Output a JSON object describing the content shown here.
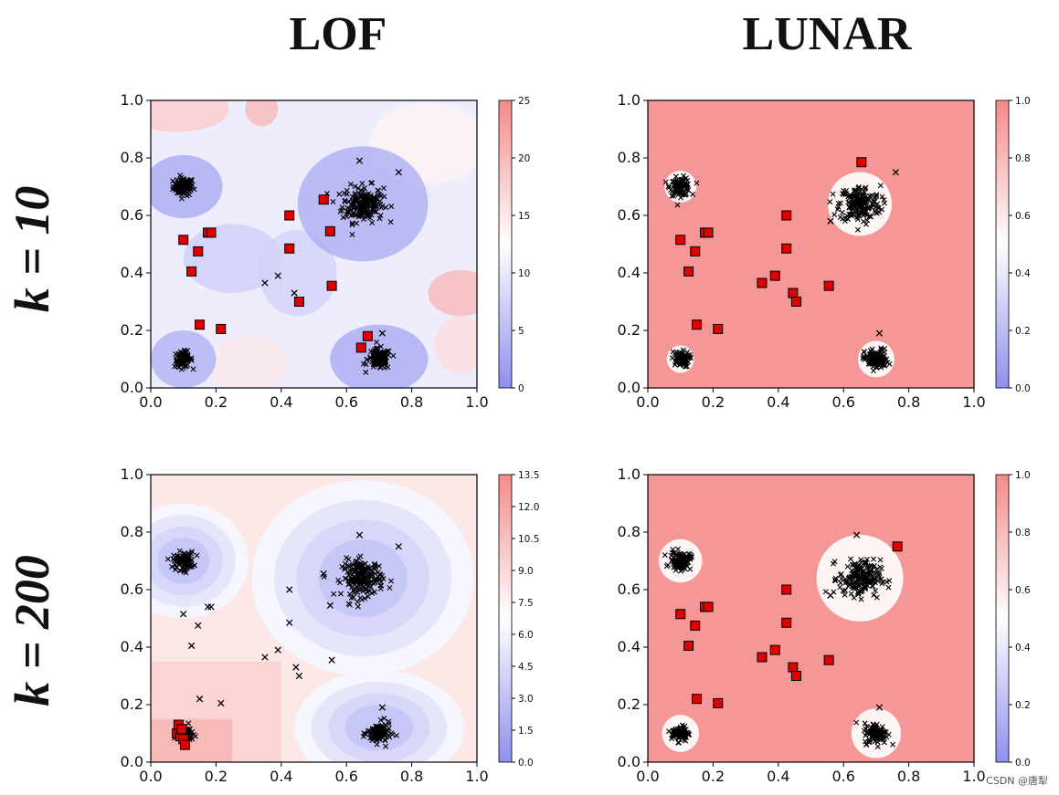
{
  "titles": {
    "col1": "LOF",
    "col2": "LUNAR",
    "row1": "k = 10",
    "row2": "k = 200"
  },
  "watermark": "CSDN @唐犁",
  "colors": {
    "high": "#f48b8b",
    "mid": "#ffffff",
    "low": "#8f8fef",
    "inlier": "#000000",
    "outlier_fill": "#e00000"
  },
  "chart_data": [
    {
      "id": "lof-k10",
      "type": "scatter",
      "title": "LOF, k = 10",
      "xlim": [
        0,
        1
      ],
      "ylim": [
        0,
        1
      ],
      "xticks": [
        "0.0",
        "0.2",
        "0.4",
        "0.6",
        "0.8",
        "1.0"
      ],
      "yticks": [
        "0.0",
        "0.2",
        "0.4",
        "0.6",
        "0.8",
        "1.0"
      ],
      "colorbar": {
        "min": 0,
        "max": 25,
        "ticks": [
          "0",
          "5",
          "10",
          "15",
          "20",
          "25"
        ]
      },
      "background": "anomaly-score contour: low (blue) near clusters, high (red) in corners",
      "clusters": [
        {
          "cx": 0.1,
          "cy": 0.7,
          "r": 0.035,
          "label": "inlier cluster"
        },
        {
          "cx": 0.65,
          "cy": 0.64,
          "r": 0.07,
          "label": "inlier cluster"
        },
        {
          "cx": 0.1,
          "cy": 0.1,
          "r": 0.03,
          "label": "inlier cluster"
        },
        {
          "cx": 0.7,
          "cy": 0.1,
          "r": 0.04,
          "label": "inlier cluster"
        }
      ],
      "flagged": [
        [
          0.1,
          0.515
        ],
        [
          0.145,
          0.475
        ],
        [
          0.175,
          0.54
        ],
        [
          0.185,
          0.54
        ],
        [
          0.125,
          0.405
        ],
        [
          0.425,
          0.6
        ],
        [
          0.425,
          0.485
        ],
        [
          0.53,
          0.655
        ],
        [
          0.55,
          0.545
        ],
        [
          0.555,
          0.355
        ],
        [
          0.455,
          0.3
        ],
        [
          0.15,
          0.22
        ],
        [
          0.215,
          0.205
        ],
        [
          0.665,
          0.18
        ],
        [
          0.645,
          0.14
        ]
      ],
      "unflagged": [
        [
          0.35,
          0.365
        ],
        [
          0.39,
          0.39
        ],
        [
          0.44,
          0.33
        ],
        [
          0.64,
          0.79
        ],
        [
          0.76,
          0.75
        ],
        [
          0.71,
          0.19
        ]
      ]
    },
    {
      "id": "lunar-k10",
      "type": "scatter",
      "title": "LUNAR, k = 10",
      "xlim": [
        0,
        1
      ],
      "ylim": [
        0,
        1
      ],
      "xticks": [
        "0.0",
        "0.2",
        "0.4",
        "0.6",
        "0.8",
        "1.0"
      ],
      "yticks": [
        "0.0",
        "0.2",
        "0.4",
        "0.6",
        "0.8",
        "1.0"
      ],
      "colorbar": {
        "min": 0,
        "max": 1,
        "ticks": [
          "0.0",
          "0.2",
          "0.4",
          "0.6",
          "0.8",
          "1.0"
        ]
      },
      "background": "uniform high score (red) except at clusters",
      "clusters": [
        {
          "cx": 0.1,
          "cy": 0.7,
          "r": 0.035,
          "label": "inlier cluster"
        },
        {
          "cx": 0.65,
          "cy": 0.64,
          "r": 0.07,
          "label": "inlier cluster"
        },
        {
          "cx": 0.1,
          "cy": 0.1,
          "r": 0.03,
          "label": "inlier cluster"
        },
        {
          "cx": 0.7,
          "cy": 0.1,
          "r": 0.04,
          "label": "inlier cluster"
        }
      ],
      "flagged": [
        [
          0.1,
          0.515
        ],
        [
          0.145,
          0.475
        ],
        [
          0.175,
          0.54
        ],
        [
          0.185,
          0.54
        ],
        [
          0.125,
          0.405
        ],
        [
          0.35,
          0.365
        ],
        [
          0.39,
          0.39
        ],
        [
          0.425,
          0.6
        ],
        [
          0.425,
          0.485
        ],
        [
          0.445,
          0.33
        ],
        [
          0.455,
          0.3
        ],
        [
          0.555,
          0.355
        ],
        [
          0.15,
          0.22
        ],
        [
          0.215,
          0.205
        ],
        [
          0.655,
          0.785
        ]
      ],
      "unflagged": [
        [
          0.76,
          0.75
        ],
        [
          0.71,
          0.19
        ],
        [
          0.56,
          0.58
        ]
      ]
    },
    {
      "id": "lof-k200",
      "type": "scatter",
      "title": "LOF, k = 200",
      "xlim": [
        0,
        1
      ],
      "ylim": [
        0,
        1
      ],
      "xticks": [
        "0.0",
        "0.2",
        "0.4",
        "0.6",
        "0.8",
        "1.0"
      ],
      "yticks": [
        "0.0",
        "0.2",
        "0.4",
        "0.6",
        "0.8",
        "1.0"
      ],
      "colorbar": {
        "min": 0,
        "max": 13.5,
        "ticks": [
          "0.0",
          "1.5",
          "3.0",
          "4.5",
          "6.0",
          "7.5",
          "9.0",
          "10.5",
          "12.0",
          "13.5"
        ]
      },
      "background": "smooth score: large blue basins around clusters, red bottom-left",
      "clusters": [
        {
          "cx": 0.1,
          "cy": 0.7,
          "r": 0.035,
          "label": "inlier cluster"
        },
        {
          "cx": 0.65,
          "cy": 0.64,
          "r": 0.07,
          "label": "inlier cluster"
        },
        {
          "cx": 0.1,
          "cy": 0.1,
          "r": 0.03,
          "label": "inlier cluster"
        },
        {
          "cx": 0.7,
          "cy": 0.1,
          "r": 0.04,
          "label": "inlier cluster"
        }
      ],
      "flagged": [
        [
          0.08,
          0.1
        ],
        [
          0.085,
          0.13
        ],
        [
          0.09,
          0.09
        ],
        [
          0.1,
          0.08
        ],
        [
          0.105,
          0.06
        ],
        [
          0.095,
          0.115
        ]
      ],
      "unflagged": [
        [
          0.1,
          0.515
        ],
        [
          0.145,
          0.475
        ],
        [
          0.175,
          0.54
        ],
        [
          0.185,
          0.54
        ],
        [
          0.125,
          0.405
        ],
        [
          0.35,
          0.365
        ],
        [
          0.39,
          0.39
        ],
        [
          0.425,
          0.6
        ],
        [
          0.425,
          0.485
        ],
        [
          0.445,
          0.33
        ],
        [
          0.455,
          0.3
        ],
        [
          0.555,
          0.355
        ],
        [
          0.15,
          0.22
        ],
        [
          0.215,
          0.205
        ],
        [
          0.64,
          0.79
        ],
        [
          0.76,
          0.75
        ],
        [
          0.71,
          0.19
        ],
        [
          0.53,
          0.655
        ],
        [
          0.55,
          0.545
        ]
      ]
    },
    {
      "id": "lunar-k200",
      "type": "scatter",
      "title": "LUNAR, k = 200",
      "xlim": [
        0,
        1
      ],
      "ylim": [
        0,
        1
      ],
      "xticks": [
        "0.0",
        "0.2",
        "0.4",
        "0.6",
        "0.8",
        "1.0"
      ],
      "yticks": [
        "0.0",
        "0.2",
        "0.4",
        "0.6",
        "0.8",
        "1.0"
      ],
      "colorbar": {
        "min": 0,
        "max": 1,
        "ticks": [
          "0.0",
          "0.2",
          "0.4",
          "0.6",
          "0.8",
          "1.0"
        ]
      },
      "background": "uniform high score (red) with white halos around clusters",
      "clusters": [
        {
          "cx": 0.1,
          "cy": 0.7,
          "r": 0.035,
          "label": "inlier cluster"
        },
        {
          "cx": 0.65,
          "cy": 0.64,
          "r": 0.07,
          "label": "inlier cluster"
        },
        {
          "cx": 0.1,
          "cy": 0.1,
          "r": 0.03,
          "label": "inlier cluster"
        },
        {
          "cx": 0.7,
          "cy": 0.1,
          "r": 0.04,
          "label": "inlier cluster"
        }
      ],
      "flagged": [
        [
          0.1,
          0.515
        ],
        [
          0.145,
          0.475
        ],
        [
          0.175,
          0.54
        ],
        [
          0.185,
          0.54
        ],
        [
          0.125,
          0.405
        ],
        [
          0.35,
          0.365
        ],
        [
          0.39,
          0.39
        ],
        [
          0.425,
          0.6
        ],
        [
          0.425,
          0.485
        ],
        [
          0.445,
          0.33
        ],
        [
          0.455,
          0.3
        ],
        [
          0.555,
          0.355
        ],
        [
          0.15,
          0.22
        ],
        [
          0.215,
          0.205
        ],
        [
          0.765,
          0.75
        ]
      ],
      "unflagged": [
        [
          0.64,
          0.79
        ],
        [
          0.71,
          0.19
        ],
        [
          0.56,
          0.58
        ]
      ]
    }
  ]
}
